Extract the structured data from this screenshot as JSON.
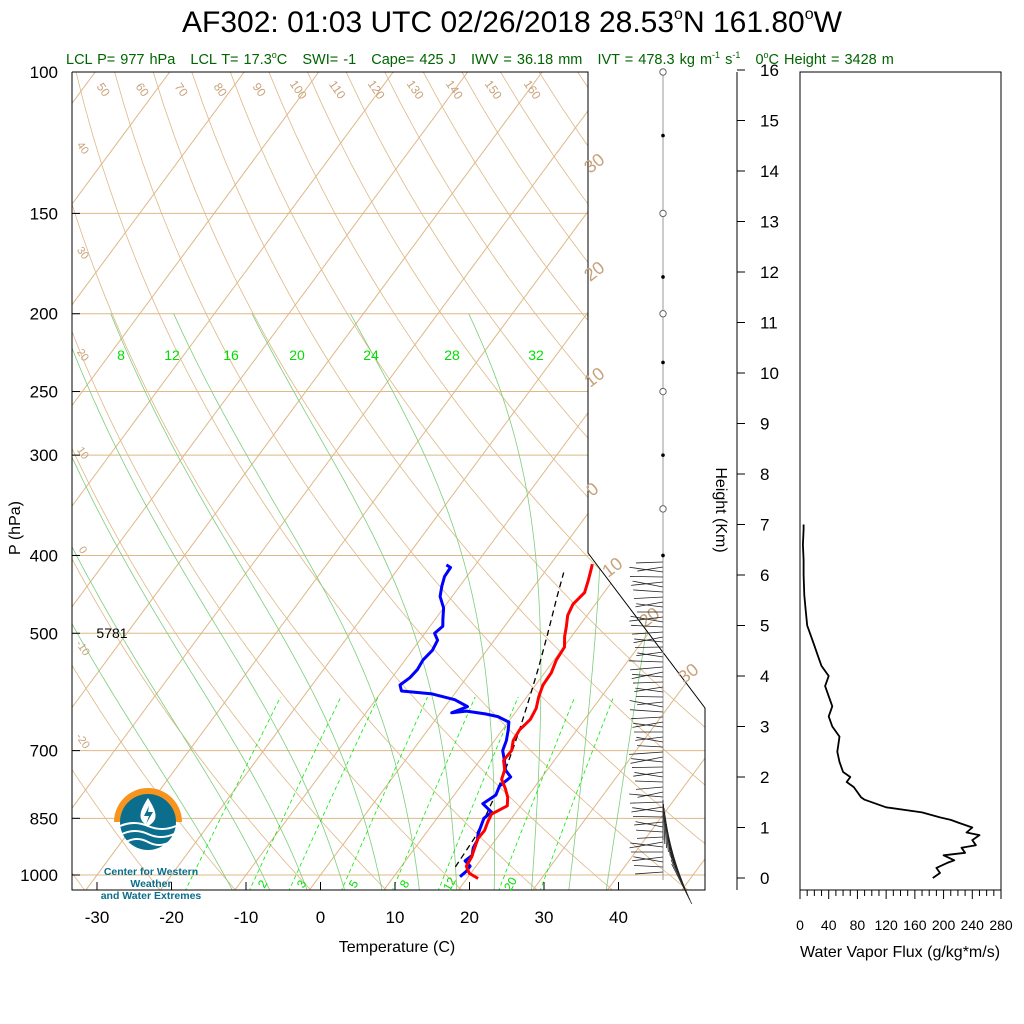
{
  "header": {
    "title_prefix": "AF302: 01:03 UTC 02/26/2018  28.53",
    "title_lat_unit": "N 161.80",
    "title_lon_unit": "W",
    "title_degree": "o",
    "info": {
      "lcl_p": "LCL P= 977 hPa",
      "lcl_t_prefix": "LCL T= 17.3",
      "lcl_t_unit": "C",
      "swi": "SWI= -1",
      "cape": "Cape= 425 J",
      "iwv": "IWV = 36.18 mm",
      "ivt_prefix": "IVT = 478.3 kg m",
      "ivt_exp1": "-1",
      "ivt_mid": " s",
      "ivt_exp2": "-1",
      "zero_c_prefix": "0",
      "zero_c_rest": "C Height = 3428 m"
    }
  },
  "colors": {
    "temperature": "#ff0000",
    "dewpoint": "#0000ff",
    "parcel": "#000000",
    "isobar_isotherm": "#deb887",
    "mixing_ratio": "#00ee00",
    "info_text": "#006400",
    "logo_orange": "#f7941d",
    "logo_blue": "#0b6e8c"
  },
  "logo": {
    "name_line1": "Center for Western Weather",
    "name_line2": "and Water Extremes"
  },
  "chart_data": [
    {
      "type": "line",
      "chart": "skew-T log-P sounding",
      "xlabel": "Temperature (C)",
      "ylabel": "P (hPa)",
      "xlim": [
        -35,
        51
      ],
      "ylim": [
        1050,
        100
      ],
      "y_scale": "log",
      "x_ticks": [
        -30,
        -20,
        -10,
        0,
        10,
        20,
        30,
        40
      ],
      "y_ticks": [
        100,
        150,
        200,
        250,
        300,
        400,
        500,
        700,
        850,
        1000
      ],
      "right_axis": {
        "label": "Height (Km)",
        "ticks": [
          0,
          1,
          2,
          3,
          4,
          5,
          6,
          7,
          8,
          9,
          10,
          11,
          12,
          13,
          14,
          15,
          16
        ]
      },
      "annotation": "5781",
      "mixing_ratio_labels_top": [
        "8",
        "12",
        "16",
        "20",
        "24",
        "28",
        "32"
      ],
      "mixing_ratio_labels_bottom": [
        "2",
        "3",
        "5",
        "8",
        "12",
        "20"
      ],
      "dry_adiabat_labels_top": [
        "50",
        "60",
        "70",
        "80",
        "90",
        "100",
        "110",
        "120",
        "130",
        "140",
        "150",
        "160"
      ],
      "dry_adiabat_labels_left": [
        "40",
        "30",
        "20",
        "10",
        "0",
        "-10",
        "-20"
      ],
      "moist_adiabat_labels_right": [
        "30",
        "20",
        "10",
        "0",
        "10",
        "20",
        "30"
      ],
      "series": [
        {
          "name": "Temperature",
          "points": [
            [
              21.5,
              1010
            ],
            [
              19.8,
              995
            ],
            [
              18.7,
              975
            ],
            [
              18.5,
              950
            ],
            [
              18.0,
              925
            ],
            [
              17.5,
              900
            ],
            [
              17.6,
              880
            ],
            [
              17.2,
              860
            ],
            [
              16.9,
              840
            ],
            [
              18.2,
              820
            ],
            [
              17.4,
              800
            ],
            [
              16.2,
              780
            ],
            [
              14.8,
              760
            ],
            [
              14.3,
              740
            ],
            [
              13.2,
              720
            ],
            [
              13.3,
              700
            ],
            [
              12.5,
              680
            ],
            [
              12.3,
              660
            ],
            [
              12.7,
              640
            ],
            [
              12.4,
              620
            ],
            [
              11.6,
              600
            ],
            [
              11.0,
              580
            ],
            [
              10.9,
              560
            ],
            [
              10.3,
              540
            ],
            [
              10.1,
              520
            ],
            [
              9.1,
              505
            ],
            [
              8.3,
              490
            ],
            [
              7.4,
              475
            ],
            [
              7.0,
              460
            ],
            [
              7.4,
              445
            ],
            [
              6.7,
              430
            ],
            [
              5.9,
              415
            ],
            [
              5.6,
              410
            ]
          ]
        },
        {
          "name": "Dewpoint",
          "points": [
            [
              18.9,
              1005
            ],
            [
              19.2,
              990
            ],
            [
              19.2,
              975
            ],
            [
              18.0,
              960
            ],
            [
              18.4,
              945
            ],
            [
              17.8,
              925
            ],
            [
              17.6,
              905
            ],
            [
              17.1,
              890
            ],
            [
              16.7,
              870
            ],
            [
              16.3,
              850
            ],
            [
              16.7,
              835
            ],
            [
              14.7,
              815
            ],
            [
              15.6,
              795
            ],
            [
              15.2,
              775
            ],
            [
              15.8,
              755
            ],
            [
              14.4,
              740
            ],
            [
              13.3,
              720
            ],
            [
              12.1,
              700
            ],
            [
              11.6,
              680
            ],
            [
              10.8,
              660
            ],
            [
              10.1,
              645
            ],
            [
              8.1,
              635
            ],
            [
              6.1,
              630
            ],
            [
              3.3,
              625
            ],
            [
              1.5,
              628
            ],
            [
              3.0,
              617
            ],
            [
              0.6,
              605
            ],
            [
              -3.0,
              595
            ],
            [
              -7.4,
              590
            ],
            [
              -8.2,
              580
            ],
            [
              -7.6,
              568
            ],
            [
              -7.4,
              555
            ],
            [
              -7.6,
              540
            ],
            [
              -7.3,
              525
            ],
            [
              -7.6,
              510
            ],
            [
              -8.7,
              500
            ],
            [
              -8.3,
              490
            ],
            [
              -9.0,
              480
            ],
            [
              -10.0,
              465
            ],
            [
              -11.6,
              450
            ],
            [
              -12.4,
              437
            ],
            [
              -13.0,
              425
            ],
            [
              -13.1,
              414
            ],
            [
              -13.9,
              411
            ]
          ]
        },
        {
          "name": "Parcel",
          "points": [
            [
              17.3,
              977
            ],
            [
              17.0,
              900
            ],
            [
              16.4,
              850
            ],
            [
              15.6,
              800
            ],
            [
              14.6,
              750
            ],
            [
              13.4,
              700
            ],
            [
              12.0,
              650
            ],
            [
              10.4,
              600
            ],
            [
              8.6,
              550
            ],
            [
              6.5,
              500
            ],
            [
              4.1,
              450
            ],
            [
              2.6,
              420
            ]
          ]
        }
      ]
    },
    {
      "type": "line",
      "xlabel": "Water Vapor Flux (g/kg*m/s)",
      "ylabel": "",
      "xlim": [
        0,
        280
      ],
      "ylim": [
        -0.3,
        16.5
      ],
      "x_ticks": [
        0,
        40,
        80,
        120,
        160,
        200,
        240,
        280
      ],
      "series": [
        {
          "name": "",
          "x": [
            185,
            195,
            190,
            205,
            215,
            200,
            230,
            225,
            245,
            240,
            250,
            232,
            240,
            220,
            210,
            195,
            170,
            120,
            90,
            85,
            80,
            75,
            65,
            70,
            60,
            55,
            52,
            55,
            45,
            40,
            45,
            40,
            35,
            40,
            30,
            25,
            20,
            15,
            10,
            8,
            6,
            5,
            5,
            4,
            5,
            5
          ],
          "y": [
            0.0,
            0.1,
            0.2,
            0.3,
            0.35,
            0.45,
            0.5,
            0.6,
            0.65,
            0.75,
            0.85,
            0.9,
            1.0,
            1.1,
            1.15,
            1.2,
            1.3,
            1.4,
            1.55,
            1.6,
            1.7,
            1.8,
            1.9,
            2.0,
            2.1,
            2.3,
            2.5,
            2.8,
            3.0,
            3.2,
            3.4,
            3.6,
            3.8,
            4.0,
            4.2,
            4.4,
            4.6,
            4.8,
            5.0,
            5.3,
            5.6,
            6.0,
            6.3,
            6.6,
            6.9,
            7.0
          ]
        }
      ]
    }
  ]
}
